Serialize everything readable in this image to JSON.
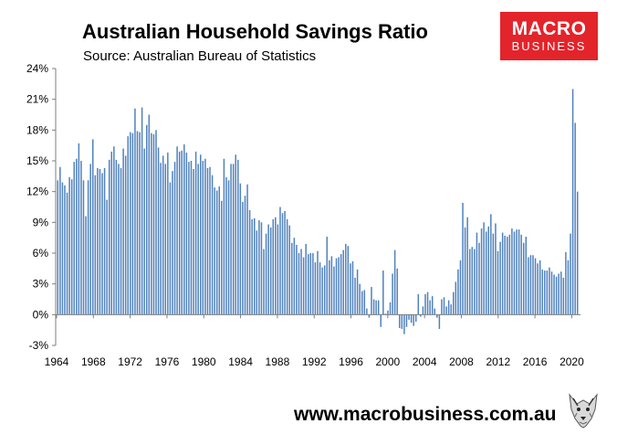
{
  "chart_data": {
    "type": "bar",
    "title": "Australian Household Savings Ratio",
    "subtitle": "Source: Australian Bureau of Statistics",
    "xlabel": "",
    "ylabel": "",
    "ylim": [
      -3,
      24
    ],
    "ytick_values": [
      -3,
      0,
      3,
      6,
      9,
      12,
      15,
      18,
      21,
      24
    ],
    "ytick_labels": [
      "-3%",
      "0%",
      "3%",
      "6%",
      "9%",
      "12%",
      "15%",
      "18%",
      "21%",
      "24%"
    ],
    "xtick_labels": [
      "1964",
      "1968",
      "1972",
      "1976",
      "1980",
      "1984",
      "1988",
      "1992",
      "1996",
      "2000",
      "2004",
      "2008",
      "2012",
      "2016",
      "2020"
    ],
    "x_start": 1964.0,
    "x_end": 2020.75,
    "period": "quarterly",
    "grid": false,
    "bar_color": "#4f81bd",
    "values": [
      13.1,
      14.4,
      12.9,
      12.6,
      11.9,
      13.4,
      13.2,
      14.9,
      15.2,
      16.7,
      15.0,
      13.1,
      9.6,
      13.1,
      14.7,
      17.1,
      13.6,
      14.3,
      14.2,
      13.8,
      14.3,
      11.2,
      15.1,
      15.9,
      16.4,
      15.1,
      14.7,
      14.3,
      16.2,
      15.5,
      17.4,
      17.8,
      17.7,
      20.1,
      17.9,
      17.8,
      20.2,
      16.2,
      18.5,
      19.5,
      17.7,
      17.6,
      18.0,
      16.3,
      14.8,
      15.5,
      14.7,
      15.8,
      12.9,
      14.0,
      14.9,
      16.4,
      15.9,
      16.0,
      16.6,
      15.8,
      14.9,
      15.0,
      14.2,
      15.9,
      14.7,
      15.6,
      15.0,
      15.2,
      14.3,
      14.4,
      13.6,
      12.4,
      12.1,
      12.5,
      11.1,
      15.2,
      13.4,
      13.1,
      14.7,
      14.7,
      15.6,
      15.1,
      12.8,
      11.0,
      11.6,
      12.7,
      10.2,
      9.3,
      9.4,
      8.2,
      9.2,
      9.0,
      6.4,
      7.9,
      8.8,
      8.5,
      9.3,
      9.5,
      8.8,
      10.5,
      9.9,
      10.1,
      9.3,
      8.7,
      7.0,
      7.5,
      6.8,
      6.0,
      6.4,
      5.6,
      6.9,
      5.9,
      6.0,
      6.0,
      5.1,
      6.2,
      5.1,
      4.6,
      4.8,
      7.6,
      5.3,
      5.7,
      4.7,
      5.5,
      5.6,
      5.9,
      6.3,
      6.9,
      6.7,
      5.0,
      5.2,
      3.6,
      4.4,
      3.0,
      2.3,
      2.4,
      0.6,
      -0.3,
      2.7,
      1.5,
      1.4,
      1.4,
      -1.2,
      4.3,
      0.1,
      0.4,
      1.2,
      4.0,
      6.3,
      4.5,
      -1.3,
      -1.4,
      -1.9,
      -1.2,
      -0.5,
      -0.8,
      -1.1,
      -0.7,
      2.0,
      -0.2,
      0.8,
      2.0,
      2.2,
      1.4,
      1.8,
      0.6,
      -0.3,
      -1.4,
      1.5,
      1.7,
      0.8,
      1.4,
      1.0,
      2.2,
      3.2,
      4.4,
      5.3,
      10.9,
      8.5,
      9.5,
      6.4,
      6.6,
      6.4,
      8.0,
      7.0,
      8.4,
      9.0,
      8.1,
      8.6,
      9.8,
      7.9,
      8.9,
      6.2,
      7.1,
      8.0,
      7.7,
      7.6,
      7.8,
      8.4,
      8.1,
      8.3,
      8.3,
      7.8,
      7.0,
      7.6,
      5.6,
      5.8,
      5.8,
      5.5,
      5.0,
      5.3,
      4.4,
      4.3,
      4.3,
      4.6,
      4.2,
      3.9,
      3.7,
      4.0,
      4.2,
      3.6,
      6.1,
      5.3,
      7.9,
      22.0,
      18.7,
      12.0
    ]
  },
  "website": "www.macrobusiness.com.au",
  "logo": {
    "line1": "MACRO",
    "line2": "BUSINESS"
  },
  "colors": {
    "bars": "#4f81bd",
    "logo_bg": "#e3242b",
    "axis": "#7f7f7f"
  }
}
